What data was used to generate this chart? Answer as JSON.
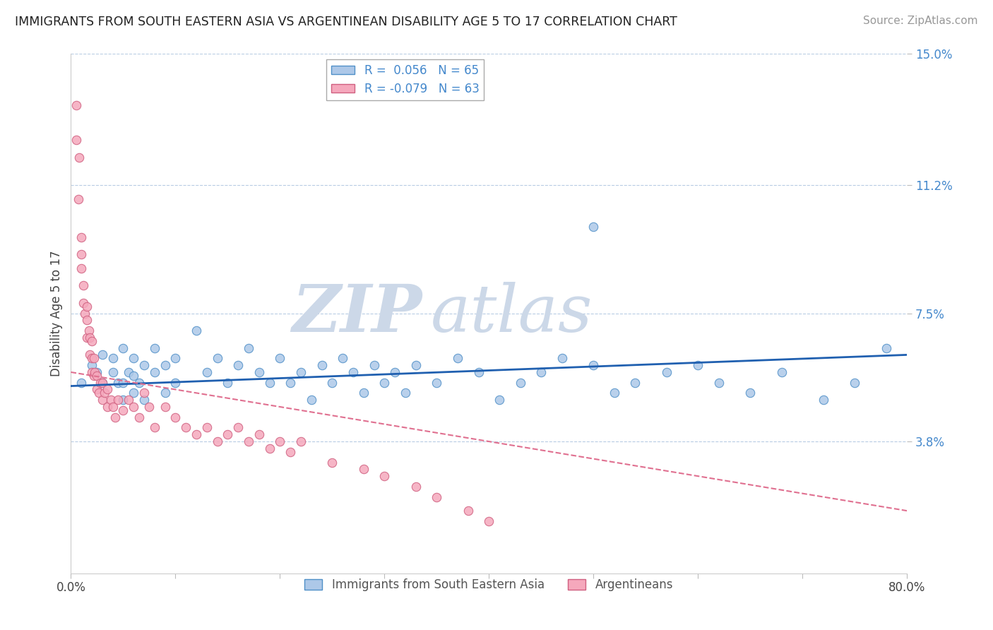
{
  "title": "IMMIGRANTS FROM SOUTH EASTERN ASIA VS ARGENTINEAN DISABILITY AGE 5 TO 17 CORRELATION CHART",
  "source": "Source: ZipAtlas.com",
  "ylabel": "Disability Age 5 to 17",
  "xlim": [
    0,
    0.8
  ],
  "ylim": [
    0,
    0.15
  ],
  "yticks": [
    0.038,
    0.075,
    0.112,
    0.15
  ],
  "ytick_labels": [
    "3.8%",
    "7.5%",
    "11.2%",
    "15.0%"
  ],
  "xticks": [
    0.0,
    0.1,
    0.2,
    0.3,
    0.4,
    0.5,
    0.6,
    0.7,
    0.8
  ],
  "xtick_labels": [
    "0.0%",
    "",
    "",
    "",
    "",
    "",
    "",
    "",
    "80.0%"
  ],
  "blue_R": 0.056,
  "blue_N": 65,
  "pink_R": -0.079,
  "pink_N": 63,
  "blue_color": "#adc8e8",
  "pink_color": "#f5a8bc",
  "blue_edge_color": "#5090c8",
  "pink_edge_color": "#d06080",
  "blue_line_color": "#2060b0",
  "pink_line_color": "#e07090",
  "watermark_zip": "ZIP",
  "watermark_atlas": "atlas",
  "watermark_color": "#ccd8e8",
  "legend_label_blue": "Immigrants from South Eastern Asia",
  "legend_label_pink": "Argentineans",
  "blue_x": [
    0.01,
    0.02,
    0.025,
    0.03,
    0.03,
    0.04,
    0.04,
    0.045,
    0.05,
    0.05,
    0.05,
    0.055,
    0.06,
    0.06,
    0.06,
    0.065,
    0.07,
    0.07,
    0.08,
    0.08,
    0.09,
    0.09,
    0.1,
    0.1,
    0.12,
    0.13,
    0.14,
    0.15,
    0.16,
    0.17,
    0.18,
    0.19,
    0.2,
    0.21,
    0.22,
    0.23,
    0.24,
    0.25,
    0.26,
    0.27,
    0.28,
    0.29,
    0.3,
    0.31,
    0.32,
    0.33,
    0.35,
    0.37,
    0.39,
    0.41,
    0.43,
    0.45,
    0.47,
    0.5,
    0.52,
    0.54,
    0.57,
    0.6,
    0.62,
    0.65,
    0.68,
    0.72,
    0.75,
    0.78,
    0.5
  ],
  "blue_y": [
    0.055,
    0.06,
    0.058,
    0.055,
    0.063,
    0.058,
    0.062,
    0.055,
    0.05,
    0.055,
    0.065,
    0.058,
    0.052,
    0.057,
    0.062,
    0.055,
    0.05,
    0.06,
    0.065,
    0.058,
    0.052,
    0.06,
    0.055,
    0.062,
    0.07,
    0.058,
    0.062,
    0.055,
    0.06,
    0.065,
    0.058,
    0.055,
    0.062,
    0.055,
    0.058,
    0.05,
    0.06,
    0.055,
    0.062,
    0.058,
    0.052,
    0.06,
    0.055,
    0.058,
    0.052,
    0.06,
    0.055,
    0.062,
    0.058,
    0.05,
    0.055,
    0.058,
    0.062,
    0.06,
    0.052,
    0.055,
    0.058,
    0.06,
    0.055,
    0.052,
    0.058,
    0.05,
    0.055,
    0.065,
    0.1
  ],
  "pink_x": [
    0.005,
    0.005,
    0.007,
    0.008,
    0.01,
    0.01,
    0.01,
    0.012,
    0.012,
    0.013,
    0.015,
    0.015,
    0.015,
    0.017,
    0.018,
    0.018,
    0.02,
    0.02,
    0.02,
    0.022,
    0.022,
    0.023,
    0.025,
    0.025,
    0.027,
    0.028,
    0.03,
    0.03,
    0.032,
    0.035,
    0.035,
    0.038,
    0.04,
    0.042,
    0.045,
    0.05,
    0.055,
    0.06,
    0.065,
    0.07,
    0.075,
    0.08,
    0.09,
    0.1,
    0.11,
    0.12,
    0.13,
    0.14,
    0.15,
    0.16,
    0.17,
    0.18,
    0.19,
    0.2,
    0.21,
    0.22,
    0.25,
    0.28,
    0.3,
    0.33,
    0.35,
    0.38,
    0.4
  ],
  "pink_y": [
    0.135,
    0.125,
    0.108,
    0.12,
    0.092,
    0.097,
    0.088,
    0.078,
    0.083,
    0.075,
    0.068,
    0.073,
    0.077,
    0.07,
    0.063,
    0.068,
    0.058,
    0.062,
    0.067,
    0.057,
    0.062,
    0.058,
    0.053,
    0.057,
    0.052,
    0.055,
    0.05,
    0.055,
    0.052,
    0.048,
    0.053,
    0.05,
    0.048,
    0.045,
    0.05,
    0.047,
    0.05,
    0.048,
    0.045,
    0.052,
    0.048,
    0.042,
    0.048,
    0.045,
    0.042,
    0.04,
    0.042,
    0.038,
    0.04,
    0.042,
    0.038,
    0.04,
    0.036,
    0.038,
    0.035,
    0.038,
    0.032,
    0.03,
    0.028,
    0.025,
    0.022,
    0.018,
    0.015
  ]
}
